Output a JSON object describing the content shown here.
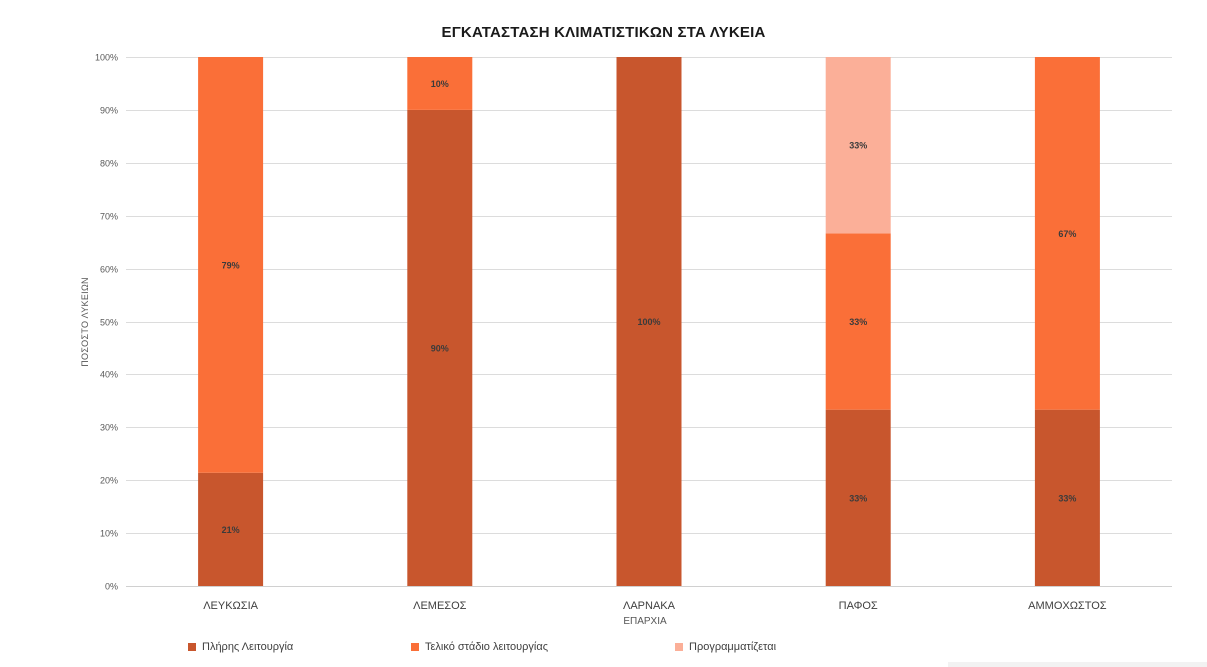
{
  "chart_data": {
    "type": "bar",
    "stacked": true,
    "percent": true,
    "title": "ΕΓΚΑΤΑΣΤΑΣΗ ΚΛΙΜΑΤΙΣΤΙΚΩΝ ΣΤΑ ΛΥΚΕΙΑ",
    "xlabel": "ΕΠΑΡΧΙΑ",
    "ylabel": "ΠΟΣΟΣΤΟ ΛΥΚΕΙΩΝ",
    "ylim": [
      0,
      100
    ],
    "yticks": [
      "0%",
      "10%",
      "20%",
      "30%",
      "40%",
      "50%",
      "60%",
      "70%",
      "80%",
      "90%",
      "100%"
    ],
    "grid": true,
    "legend_position": "bottom",
    "categories": [
      "ΛΕΥΚΩΣΙΑ",
      "ΛΕΜΕΣΟΣ",
      "ΛΑΡΝΑΚΑ",
      "ΠΑΦΟΣ",
      "ΑΜΜΟΧΩΣΤΟΣ"
    ],
    "series": [
      {
        "name": "Πλήρης Λειτουργία",
        "color": "#c8562d",
        "values": [
          21.4,
          90,
          100,
          33.33,
          33.33
        ],
        "labels": [
          "21%",
          "90%",
          "100%",
          "33%",
          "33%"
        ]
      },
      {
        "name": "Τελικό στάδιο λειτουργίας",
        "color": "#fa6f38",
        "values": [
          78.6,
          10,
          0,
          33.33,
          66.67
        ],
        "labels": [
          "79%",
          "10%",
          "",
          "33%",
          "67%"
        ]
      },
      {
        "name": "Προγραμματίζεται",
        "color": "#fbaf98",
        "values": [
          0,
          0,
          0,
          33.34,
          0
        ],
        "labels": [
          "",
          "",
          "",
          "33%",
          ""
        ]
      }
    ]
  }
}
